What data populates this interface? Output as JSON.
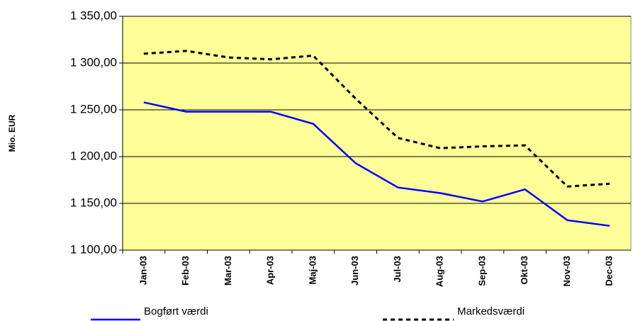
{
  "chart_data": {
    "type": "line",
    "y_label": "Mio. EUR",
    "categories": [
      "Jan-03",
      "Feb-03",
      "Mar-03",
      "Apr-03",
      "Maj-03",
      "Jun-03",
      "Jul-03",
      "Aug-03",
      "Sep-03",
      "Okt-03",
      "Nov-03",
      "Dec-03"
    ],
    "series": [
      {
        "name": "Bogført værdi",
        "color": "#0000ff",
        "style": "solid",
        "values": [
          1258,
          1248,
          1248,
          1248,
          1235,
          1193,
          1167,
          1161,
          1152,
          1165,
          1132,
          1126
        ]
      },
      {
        "name": "Markedsværdi",
        "color": "#000000",
        "style": "dashed",
        "values": [
          1310,
          1313,
          1306,
          1304,
          1308,
          1262,
          1220,
          1209,
          1211,
          1212,
          1168,
          1171
        ]
      }
    ],
    "ylim": [
      1100,
      1350
    ],
    "yticks": [
      {
        "value": 1100,
        "label": "1 100,00"
      },
      {
        "value": 1150,
        "label": "1 150,00"
      },
      {
        "value": 1200,
        "label": "1 200,00"
      },
      {
        "value": 1250,
        "label": "1 250,00"
      },
      {
        "value": 1300,
        "label": "1 300,00"
      },
      {
        "value": 1350,
        "label": "1 350,00"
      }
    ],
    "grid": true,
    "background": "#ffff99"
  }
}
